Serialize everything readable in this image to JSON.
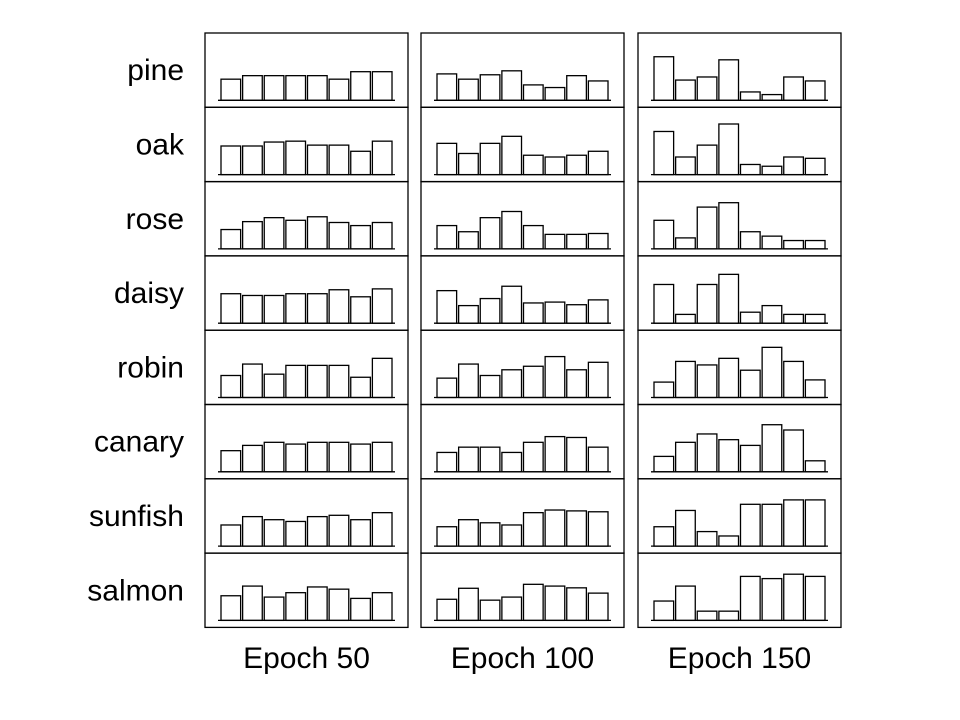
{
  "chart_data": {
    "type": "bar",
    "rows": [
      "pine",
      "oak",
      "rose",
      "daisy",
      "robin",
      "canary",
      "sunfish",
      "salmon"
    ],
    "columns": [
      "Epoch 50",
      "Epoch 100",
      "Epoch 150"
    ],
    "units_per_panel": 8,
    "ylim": [
      0,
      1
    ],
    "grid": false,
    "values": [
      [
        [
          0.48,
          0.56,
          0.56,
          0.56,
          0.56,
          0.48,
          0.65,
          0.65
        ],
        [
          0.65,
          0.65,
          0.74,
          0.76,
          0.67,
          0.67,
          0.53,
          0.76
        ],
        [
          0.44,
          0.62,
          0.71,
          0.65,
          0.73,
          0.6,
          0.53,
          0.6
        ],
        [
          0.67,
          0.63,
          0.63,
          0.67,
          0.67,
          0.76,
          0.6,
          0.78
        ],
        [
          0.5,
          0.76,
          0.53,
          0.73,
          0.73,
          0.73,
          0.46,
          0.89
        ],
        [
          0.48,
          0.6,
          0.67,
          0.63,
          0.67,
          0.67,
          0.63,
          0.67
        ],
        [
          0.48,
          0.67,
          0.6,
          0.56,
          0.67,
          0.7,
          0.6,
          0.76
        ],
        [
          0.56,
          0.78,
          0.53,
          0.63,
          0.76,
          0.71,
          0.5,
          0.63
        ]
      ],
      [
        [
          0.6,
          0.48,
          0.58,
          0.67,
          0.35,
          0.29,
          0.56,
          0.44
        ],
        [
          0.71,
          0.48,
          0.71,
          0.87,
          0.44,
          0.4,
          0.44,
          0.53
        ],
        [
          0.53,
          0.39,
          0.71,
          0.85,
          0.53,
          0.33,
          0.33,
          0.35
        ],
        [
          0.74,
          0.4,
          0.56,
          0.84,
          0.46,
          0.48,
          0.42,
          0.53
        ],
        [
          0.44,
          0.76,
          0.5,
          0.63,
          0.71,
          0.93,
          0.63,
          0.8
        ],
        [
          0.44,
          0.56,
          0.56,
          0.44,
          0.67,
          0.8,
          0.78,
          0.56
        ],
        [
          0.44,
          0.6,
          0.53,
          0.48,
          0.76,
          0.82,
          0.8,
          0.78
        ],
        [
          0.48,
          0.73,
          0.46,
          0.53,
          0.82,
          0.78,
          0.74,
          0.62
        ]
      ],
      [
        [
          0.99,
          0.46,
          0.53,
          0.92,
          0.19,
          0.13,
          0.53,
          0.44
        ],
        [
          0.98,
          0.4,
          0.67,
          1.15,
          0.23,
          0.19,
          0.4,
          0.37
        ],
        [
          0.65,
          0.25,
          0.95,
          1.05,
          0.39,
          0.29,
          0.19,
          0.19
        ],
        [
          0.88,
          0.2,
          0.88,
          1.11,
          0.25,
          0.4,
          0.2,
          0.2
        ],
        [
          0.35,
          0.82,
          0.74,
          0.89,
          0.62,
          1.14,
          0.82,
          0.4
        ],
        [
          0.35,
          0.67,
          0.86,
          0.73,
          0.6,
          1.07,
          0.95,
          0.25
        ],
        [
          0.44,
          0.81,
          0.33,
          0.23,
          0.95,
          0.95,
          1.05,
          1.05
        ],
        [
          0.44,
          0.78,
          0.21,
          0.21,
          1.0,
          0.95,
          1.05,
          1.0
        ]
      ]
    ]
  }
}
